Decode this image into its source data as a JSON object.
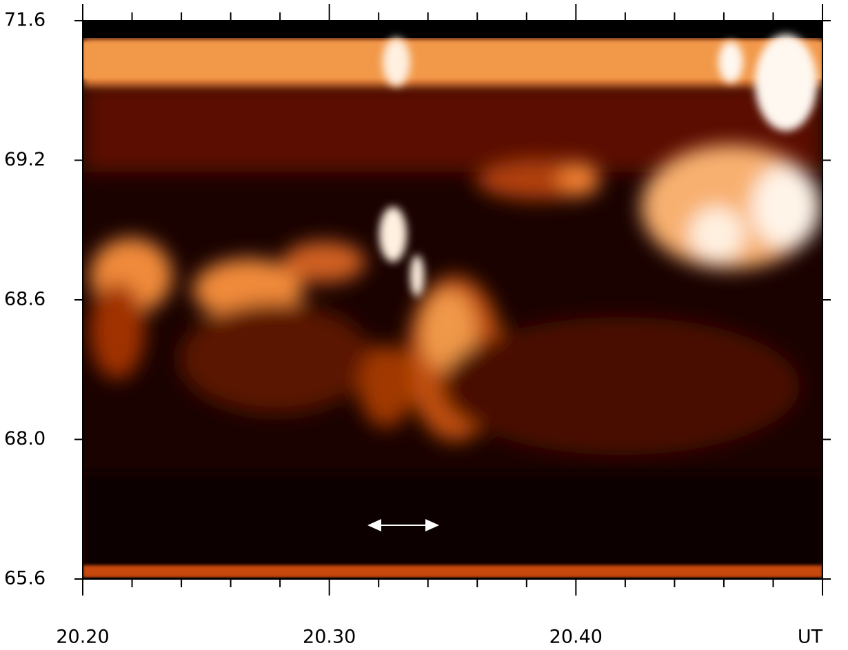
{
  "chart_data": {
    "type": "keogram",
    "y_tick_labels": [
      "71.6",
      "69.2",
      "68.6",
      "68.0",
      "65.6"
    ],
    "xlim": [
      20.2,
      20.5
    ],
    "xticks": [
      {
        "value": 20.2,
        "label": "20.20"
      },
      {
        "value": 20.3,
        "label": "20.30"
      },
      {
        "value": 20.4,
        "label": "20.40"
      },
      {
        "value": 20.5,
        "label": "UT"
      }
    ],
    "xminor": [
      20.22,
      20.24,
      20.26,
      20.28,
      20.32,
      20.34,
      20.36,
      20.38,
      20.42,
      20.44,
      20.46,
      20.48
    ]
  }
}
